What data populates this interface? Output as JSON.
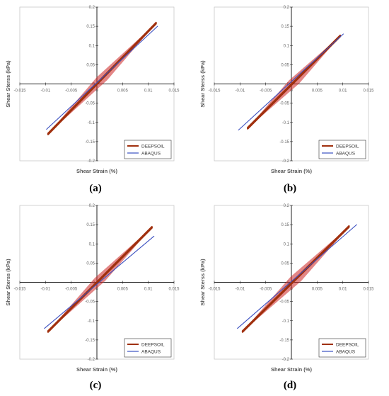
{
  "captions": [
    "(a)",
    "(b)",
    "(c)",
    "(d)"
  ],
  "colors": {
    "DEEPSOIL": "#a0300e",
    "ABAQUS": "#3a4fc0",
    "loops": "#cc2222"
  },
  "chart_data": [
    {
      "type": "line",
      "xlabel": "Shear Strain (%)",
      "ylabel": "Shear Sterss (kPa)",
      "xlim": [
        -0.015,
        0.015
      ],
      "ylim": [
        -0.2,
        0.2
      ],
      "xticks": [
        "-0.015",
        "-0.01",
        "-0.005",
        "0",
        "0.005",
        "0.01",
        "0.015"
      ],
      "yticks": [
        "0.2",
        "0.15",
        "0.1",
        "0.05",
        "0",
        "-0.05",
        "-0.1",
        "-0.15",
        "-0.2"
      ],
      "legend": [
        "DEEPSOIL",
        "ABAQUS"
      ],
      "legend_position": "bottom-right",
      "series": [
        {
          "name": "DEEPSOIL",
          "x": [
            -0.0095,
            0.0115
          ],
          "y": [
            -0.13,
            0.158
          ]
        },
        {
          "name": "ABAQUS",
          "x": [
            -0.0098,
            0.0118
          ],
          "y": [
            -0.118,
            0.15
          ]
        }
      ]
    },
    {
      "type": "line",
      "xlabel": "Shear Strain (%)",
      "ylabel": "Shear Sterss (kPa)",
      "xlim": [
        -0.015,
        0.015
      ],
      "ylim": [
        -0.2,
        0.2
      ],
      "xticks": [
        "-0.015",
        "-0.01",
        "-0.005",
        "0",
        "0.005",
        "0.01",
        "0.015"
      ],
      "yticks": [
        "0.2",
        "0.15",
        "0.1",
        "0.05",
        "0",
        "-0.05",
        "-0.1",
        "-0.15",
        "-0.2"
      ],
      "legend": [
        "DEEPSOIL",
        "ABAQUS"
      ],
      "legend_position": "bottom-right",
      "series": [
        {
          "name": "DEEPSOIL",
          "x": [
            -0.0085,
            0.0095
          ],
          "y": [
            -0.115,
            0.125
          ]
        },
        {
          "name": "ABAQUS",
          "x": [
            -0.0103,
            0.0101
          ],
          "y": [
            -0.12,
            0.13
          ]
        }
      ]
    },
    {
      "type": "line",
      "xlabel": "Shear Strain (%)",
      "ylabel": "Shear Sterss (kPa)",
      "xlim": [
        -0.015,
        0.015
      ],
      "ylim": [
        -0.2,
        0.2
      ],
      "xticks": [
        "-0.015",
        "-0.01",
        "-0.005",
        "0",
        "0.005",
        "0.01",
        "0.015"
      ],
      "yticks": [
        "0.2",
        "0.15",
        "0.1",
        "0.05",
        "0",
        "-0.05",
        "-0.1",
        "-0.15",
        "-0.2"
      ],
      "legend": [
        "DEEPSOIL",
        "ABAQUS"
      ],
      "legend_position": "bottom-right",
      "series": [
        {
          "name": "DEEPSOIL",
          "x": [
            -0.0095,
            0.0107
          ],
          "y": [
            -0.128,
            0.143
          ]
        },
        {
          "name": "ABAQUS",
          "x": [
            -0.0102,
            0.0111
          ],
          "y": [
            -0.12,
            0.12
          ]
        }
      ]
    },
    {
      "type": "line",
      "xlabel": "Shear Strain (%)",
      "ylabel": "Shear Sterss (kPa)",
      "xlim": [
        -0.015,
        0.015
      ],
      "ylim": [
        -0.2,
        0.2
      ],
      "xticks": [
        "-0.015",
        "-0.01",
        "-0.005",
        "0",
        "0.005",
        "0.01",
        "0.015"
      ],
      "yticks": [
        "0.2",
        "0.15",
        "0.1",
        "0.05",
        "0",
        "-0.05",
        "-0.1",
        "-0.15",
        "-0.2"
      ],
      "legend": [
        "DEEPSOIL",
        "ABAQUS"
      ],
      "legend_position": "bottom-right",
      "series": [
        {
          "name": "DEEPSOIL",
          "x": [
            -0.0095,
            0.0112
          ],
          "y": [
            -0.128,
            0.145
          ]
        },
        {
          "name": "ABAQUS",
          "x": [
            -0.0105,
            0.0127
          ],
          "y": [
            -0.12,
            0.15
          ]
        }
      ]
    }
  ]
}
